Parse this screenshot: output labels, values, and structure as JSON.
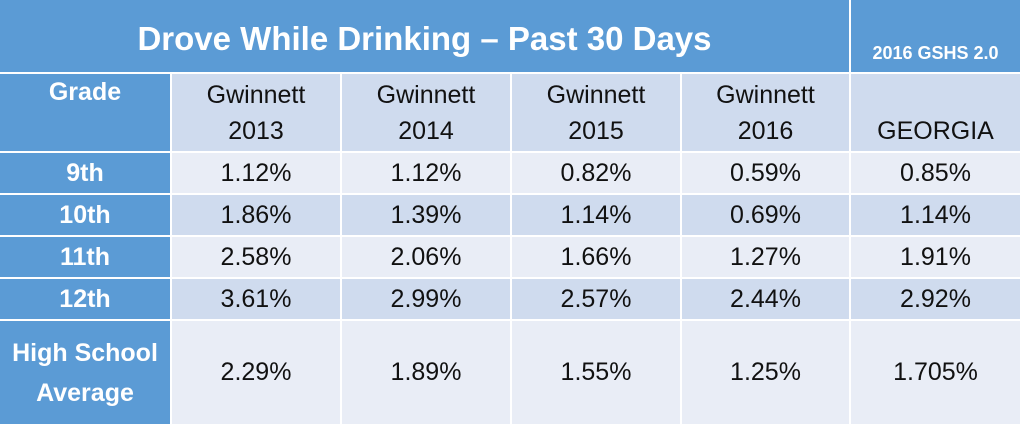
{
  "title": "Drove While Drinking – Past 30 Days",
  "source_label": "2016 GSHS 2.0",
  "grade_header": "Grade",
  "columns": [
    {
      "line1": "Gwinnett",
      "line2": "2013"
    },
    {
      "line1": "Gwinnett",
      "line2": "2014"
    },
    {
      "line1": "Gwinnett",
      "line2": "2015"
    },
    {
      "line1": "Gwinnett",
      "line2": "2016"
    },
    {
      "line1": "",
      "line2": "GEORGIA"
    }
  ],
  "rows": [
    {
      "label": "9th",
      "values": [
        "1.12%",
        "1.12%",
        "0.82%",
        "0.59%",
        "0.85%"
      ]
    },
    {
      "label": "10th",
      "values": [
        "1.86%",
        "1.39%",
        "1.14%",
        "0.69%",
        "1.14%"
      ]
    },
    {
      "label": "11th",
      "values": [
        "2.58%",
        "2.06%",
        "1.66%",
        "1.27%",
        "1.91%"
      ]
    },
    {
      "label": "12th",
      "values": [
        "3.61%",
        "2.99%",
        "2.57%",
        "2.44%",
        "2.92%"
      ]
    },
    {
      "label_line1": "High School",
      "label_line2": "Average",
      "values": [
        "2.29%",
        "1.89%",
        "1.55%",
        "1.25%",
        "1.705%"
      ]
    }
  ],
  "colors": {
    "header_blue": "#5b9bd5",
    "band_light": "#e9edf6",
    "band_mid": "#cfdbee"
  }
}
